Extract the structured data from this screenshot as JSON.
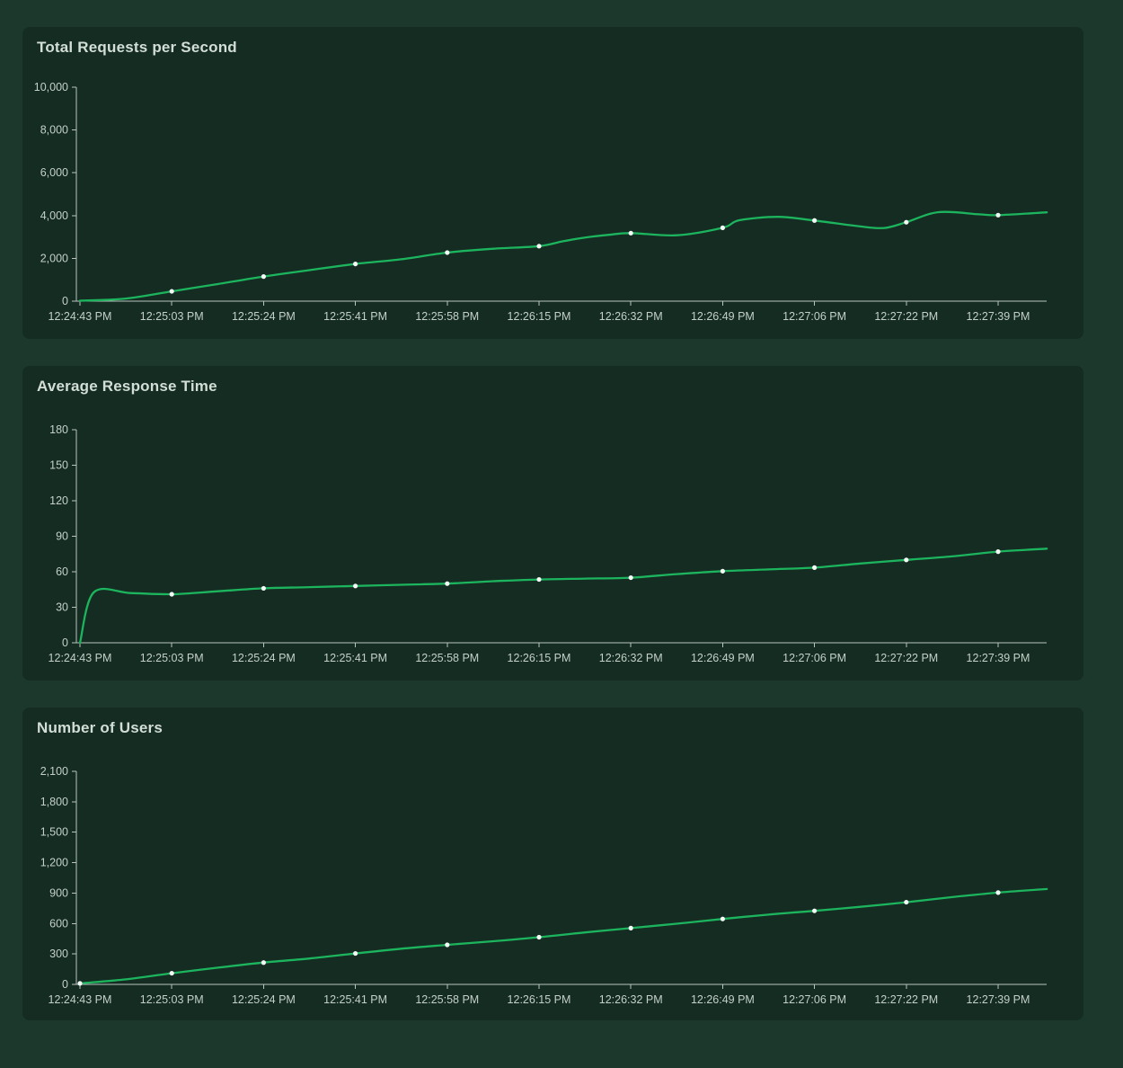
{
  "theme": {
    "page_bg": "#1c382c",
    "panel_bg": "#142c22",
    "title_color": "#d2ded6",
    "axis_label_color": "#c4d0c8",
    "axis_line_color": "#b9c4bc",
    "line_color": "#1db45e",
    "marker_color": "#f4fbf7"
  },
  "x_tick_labels": [
    "12:24:43 PM",
    "12:25:03 PM",
    "12:25:24 PM",
    "12:25:41 PM",
    "12:25:58 PM",
    "12:26:15 PM",
    "12:26:32 PM",
    "12:26:49 PM",
    "12:27:06 PM",
    "12:27:22 PM",
    "12:27:39 PM"
  ],
  "chart_data": [
    {
      "type": "line",
      "title": "Total Requests per Second",
      "ylabel": "",
      "xlabel": "",
      "y_max": 10000,
      "ylim": [
        0,
        10000
      ],
      "y_tick_labels": [
        "0",
        "2,000",
        "4,000",
        "6,000",
        "8,000",
        "10,000"
      ],
      "x_tick_labels": [
        "12:24:43 PM",
        "12:25:03 PM",
        "12:25:24 PM",
        "12:25:41 PM",
        "12:25:58 PM",
        "12:26:15 PM",
        "12:26:32 PM",
        "12:26:49 PM",
        "12:27:06 PM",
        "12:27:22 PM",
        "12:27:39 PM"
      ],
      "legend": [],
      "grid": false,
      "points": [
        [
          0,
          20
        ],
        [
          0.5,
          120
        ],
        [
          1,
          460
        ],
        [
          1.5,
          800
        ],
        [
          2,
          1150
        ],
        [
          2.5,
          1450
        ],
        [
          3,
          1740
        ],
        [
          3.5,
          1960
        ],
        [
          4,
          2270
        ],
        [
          4.5,
          2450
        ],
        [
          5,
          2570
        ],
        [
          5.26,
          2800
        ],
        [
          5.51,
          2980
        ],
        [
          5.76,
          3100
        ],
        [
          6,
          3180
        ],
        [
          6.5,
          3080
        ],
        [
          7,
          3430
        ],
        [
          7.18,
          3780
        ],
        [
          7.6,
          3940
        ],
        [
          8,
          3770
        ],
        [
          8.5,
          3490
        ],
        [
          8.76,
          3420
        ],
        [
          9,
          3690
        ],
        [
          9.35,
          4160
        ],
        [
          9.79,
          4060
        ],
        [
          10,
          4020
        ],
        [
          10.53,
          4150
        ]
      ],
      "markers": [
        [
          1,
          460
        ],
        [
          2,
          1150
        ],
        [
          3,
          1740
        ],
        [
          4,
          2270
        ],
        [
          5,
          2570
        ],
        [
          6,
          3180
        ],
        [
          7,
          3430
        ],
        [
          8,
          3770
        ],
        [
          9,
          3690
        ],
        [
          10,
          4020
        ]
      ]
    },
    {
      "type": "line",
      "title": "Average Response Time",
      "ylabel": "",
      "xlabel": "",
      "y_max": 180,
      "ylim": [
        0,
        180
      ],
      "y_tick_labels": [
        "0",
        "30",
        "60",
        "90",
        "120",
        "150",
        "180"
      ],
      "x_tick_labels": [
        "12:24:43 PM",
        "12:25:03 PM",
        "12:25:24 PM",
        "12:25:41 PM",
        "12:25:58 PM",
        "12:26:15 PM",
        "12:26:32 PM",
        "12:26:49 PM",
        "12:27:06 PM",
        "12:27:22 PM",
        "12:27:39 PM"
      ],
      "legend": [],
      "grid": false,
      "points": [
        [
          0,
          0
        ],
        [
          0.15,
          42.5
        ],
        [
          0.55,
          42
        ],
        [
          1,
          41
        ],
        [
          1.5,
          43.5
        ],
        [
          2,
          46
        ],
        [
          2.5,
          47
        ],
        [
          3,
          48
        ],
        [
          3.5,
          49
        ],
        [
          4,
          50
        ],
        [
          4.5,
          52
        ],
        [
          5,
          53.5
        ],
        [
          5.5,
          54.2
        ],
        [
          6,
          55
        ],
        [
          6.5,
          58
        ],
        [
          7,
          60.5
        ],
        [
          7.5,
          62
        ],
        [
          8,
          63.5
        ],
        [
          8.5,
          67
        ],
        [
          9,
          70
        ],
        [
          9.5,
          73
        ],
        [
          10,
          77
        ],
        [
          10.53,
          79.5
        ]
      ],
      "markers": [
        [
          1,
          41
        ],
        [
          2,
          46
        ],
        [
          3,
          48
        ],
        [
          4,
          50
        ],
        [
          5,
          53.5
        ],
        [
          6,
          55
        ],
        [
          7,
          60.5
        ],
        [
          8,
          63.5
        ],
        [
          9,
          70
        ],
        [
          10,
          77
        ]
      ]
    },
    {
      "type": "line",
      "title": "Number of Users",
      "ylabel": "",
      "xlabel": "",
      "y_max": 2100,
      "ylim": [
        0,
        2100
      ],
      "y_tick_labels": [
        "0",
        "300",
        "600",
        "900",
        "1,200",
        "1,500",
        "1,800",
        "2,100"
      ],
      "x_tick_labels": [
        "12:24:43 PM",
        "12:25:03 PM",
        "12:25:24 PM",
        "12:25:41 PM",
        "12:25:58 PM",
        "12:26:15 PM",
        "12:26:32 PM",
        "12:26:49 PM",
        "12:27:06 PM",
        "12:27:22 PM",
        "12:27:39 PM"
      ],
      "legend": [],
      "grid": false,
      "points": [
        [
          0,
          10
        ],
        [
          0.5,
          50
        ],
        [
          1,
          110
        ],
        [
          1.5,
          165
        ],
        [
          2,
          215
        ],
        [
          2.5,
          255
        ],
        [
          3,
          305
        ],
        [
          3.5,
          352
        ],
        [
          4,
          390
        ],
        [
          4.5,
          425
        ],
        [
          5,
          465
        ],
        [
          5.5,
          512
        ],
        [
          6,
          555
        ],
        [
          6.5,
          598
        ],
        [
          7,
          645
        ],
        [
          7.5,
          688
        ],
        [
          8,
          725
        ],
        [
          8.5,
          765
        ],
        [
          9,
          810
        ],
        [
          9.5,
          860
        ],
        [
          10,
          905
        ],
        [
          10.53,
          940
        ]
      ],
      "markers": [
        [
          0,
          10
        ],
        [
          1,
          110
        ],
        [
          2,
          215
        ],
        [
          3,
          305
        ],
        [
          4,
          390
        ],
        [
          5,
          465
        ],
        [
          6,
          555
        ],
        [
          7,
          645
        ],
        [
          8,
          725
        ],
        [
          9,
          810
        ],
        [
          10,
          905
        ]
      ]
    }
  ]
}
